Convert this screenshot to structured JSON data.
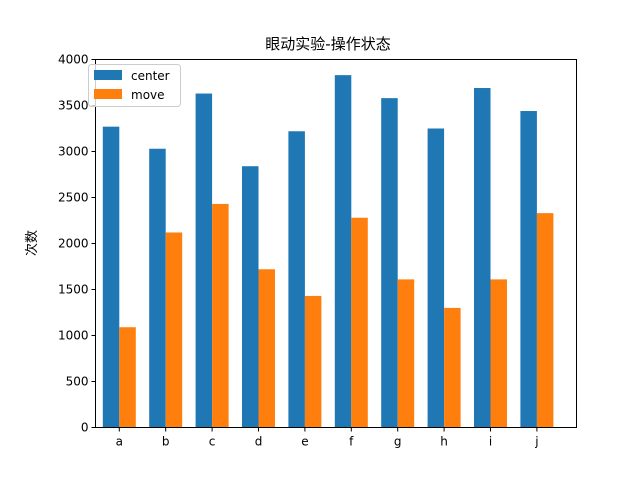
{
  "chart_data": {
    "type": "bar",
    "title": "眼动实验-操作状态",
    "xlabel": "",
    "ylabel": "次数",
    "categories": [
      "a",
      "b",
      "c",
      "d",
      "e",
      "f",
      "g",
      "h",
      "i",
      "j"
    ],
    "ylim": [
      0,
      4000
    ],
    "yticks": [
      0,
      500,
      1000,
      1500,
      2000,
      2500,
      3000,
      3500,
      4000
    ],
    "grid": false,
    "legend_position": "top-left",
    "series": [
      {
        "name": "center",
        "color": "#1f77b4",
        "values": [
          3270,
          3030,
          3630,
          2840,
          3220,
          3830,
          3580,
          3250,
          3690,
          3440
        ]
      },
      {
        "name": "move",
        "color": "#ff7f0e",
        "values": [
          1090,
          2120,
          2430,
          1720,
          1430,
          2280,
          1610,
          1300,
          1610,
          2330
        ]
      }
    ]
  }
}
